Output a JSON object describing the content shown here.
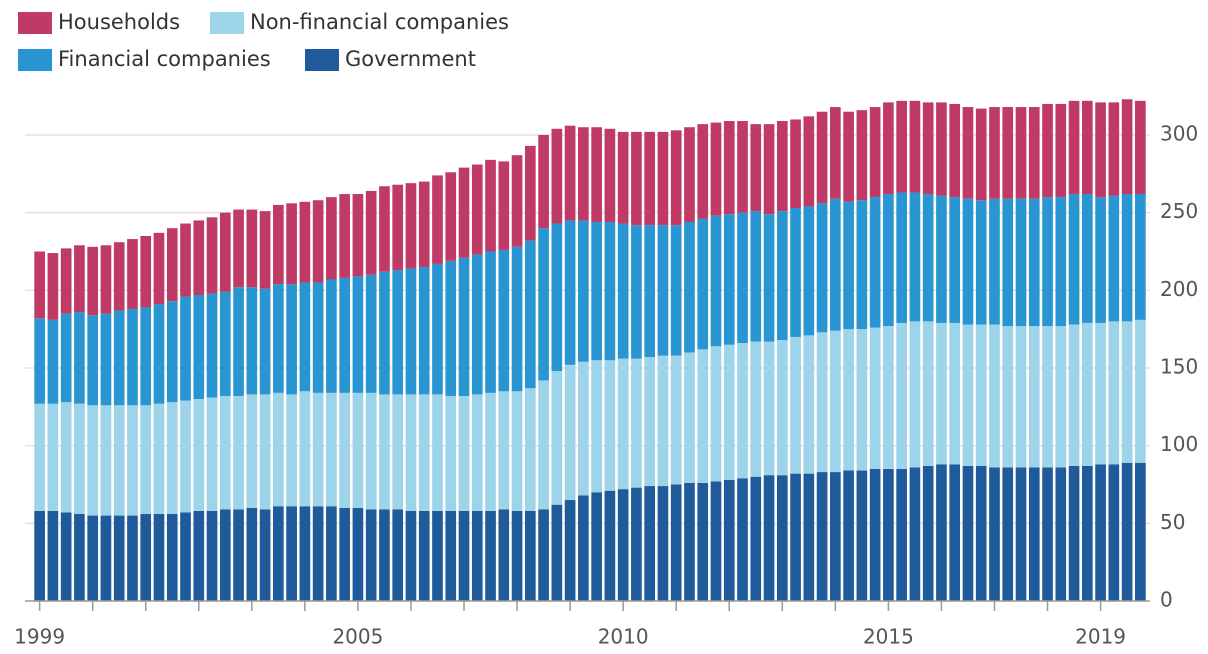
{
  "chart_data": {
    "type": "stacked_bar",
    "categories": [
      "1999",
      null,
      null,
      null,
      null,
      null,
      null,
      null,
      null,
      null,
      null,
      null,
      null,
      null,
      null,
      null,
      null,
      null,
      null,
      null,
      null,
      null,
      null,
      null,
      "2005",
      null,
      null,
      null,
      null,
      null,
      null,
      null,
      null,
      null,
      null,
      null,
      null,
      null,
      null,
      null,
      null,
      null,
      null,
      null,
      "2010",
      null,
      null,
      null,
      null,
      null,
      null,
      null,
      null,
      null,
      null,
      null,
      null,
      null,
      null,
      null,
      null,
      null,
      null,
      null,
      "2015",
      null,
      null,
      null,
      null,
      null,
      null,
      null,
      null,
      null,
      null,
      null,
      null,
      null,
      null,
      null,
      "2019",
      null,
      null,
      null
    ],
    "series": [
      {
        "name": "Government",
        "color": "#1f5a9a",
        "values": [
          58,
          58,
          57,
          56,
          55,
          55,
          55,
          55,
          56,
          56,
          56,
          57,
          58,
          58,
          59,
          59,
          60,
          59,
          61,
          61,
          61,
          61,
          61,
          60,
          60,
          59,
          59,
          59,
          58,
          58,
          58,
          58,
          58,
          58,
          58,
          59,
          58,
          58,
          59,
          62,
          65,
          68,
          70,
          71,
          72,
          73,
          74,
          74,
          75,
          76,
          76,
          77,
          78,
          79,
          80,
          81,
          81,
          82,
          82,
          83,
          83,
          84,
          84,
          85,
          85,
          85,
          86,
          87,
          88,
          88,
          87,
          87,
          86,
          86,
          86,
          86,
          86,
          86,
          87,
          87,
          88,
          88,
          89,
          89
        ]
      },
      {
        "name": "Non-financial companies",
        "color": "#9dd4ea",
        "values": [
          69,
          69,
          71,
          71,
          71,
          71,
          71,
          71,
          70,
          71,
          72,
          72,
          72,
          73,
          73,
          73,
          73,
          74,
          73,
          72,
          74,
          73,
          73,
          74,
          74,
          75,
          74,
          74,
          75,
          75,
          75,
          74,
          74,
          75,
          76,
          76,
          77,
          79,
          83,
          86,
          87,
          86,
          85,
          84,
          84,
          83,
          83,
          84,
          83,
          84,
          86,
          87,
          87,
          87,
          87,
          86,
          87,
          88,
          89,
          90,
          91,
          91,
          91,
          91,
          92,
          94,
          94,
          93,
          91,
          91,
          91,
          91,
          92,
          91,
          91,
          91,
          91,
          91,
          91,
          92,
          91,
          92,
          91,
          92
        ]
      },
      {
        "name": "Financial companies",
        "color": "#2a95d3",
        "values": [
          55,
          54,
          57,
          59,
          58,
          59,
          61,
          62,
          63,
          64,
          65,
          67,
          67,
          67,
          67,
          70,
          69,
          68,
          70,
          71,
          70,
          71,
          73,
          74,
          75,
          76,
          79,
          80,
          81,
          82,
          84,
          87,
          89,
          90,
          91,
          91,
          93,
          95,
          98,
          95,
          93,
          91,
          89,
          89,
          87,
          86,
          85,
          84,
          84,
          84,
          84,
          84,
          84,
          84,
          84,
          82,
          83,
          83,
          83,
          83,
          85,
          82,
          83,
          84,
          85,
          84,
          83,
          82,
          82,
          81,
          81,
          80,
          81,
          82,
          82,
          82,
          83,
          83,
          84,
          83,
          81,
          81,
          82,
          81
        ]
      },
      {
        "name": "Households",
        "color": "#c03a66",
        "values": [
          43,
          43,
          42,
          43,
          44,
          44,
          44,
          45,
          46,
          46,
          47,
          47,
          48,
          49,
          51,
          50,
          50,
          50,
          51,
          52,
          52,
          53,
          53,
          54,
          53,
          54,
          55,
          55,
          55,
          55,
          57,
          57,
          58,
          58,
          59,
          57,
          59,
          61,
          60,
          61,
          61,
          60,
          61,
          60,
          59,
          60,
          60,
          60,
          61,
          61,
          61,
          60,
          60,
          59,
          56,
          58,
          58,
          57,
          58,
          59,
          59,
          58,
          58,
          58,
          59,
          59,
          59,
          59,
          60,
          60,
          59,
          59,
          59,
          59,
          59,
          59,
          60,
          60,
          60,
          60,
          61,
          60,
          61,
          60
        ]
      }
    ],
    "ylim": [
      0,
      330
    ],
    "yticks": [
      0,
      50,
      100,
      150,
      200,
      250,
      300
    ],
    "grid": true
  }
}
